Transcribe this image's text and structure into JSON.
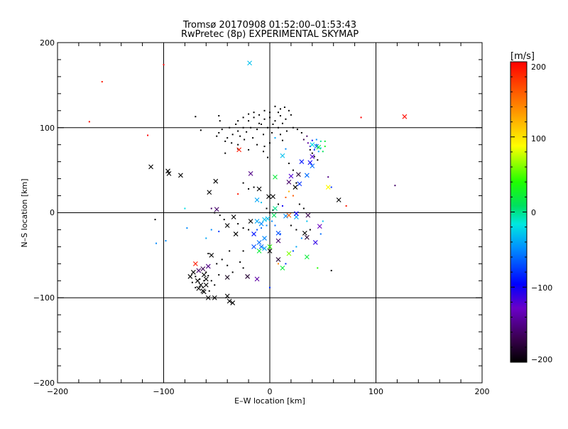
{
  "chart_data": {
    "type": "scatter",
    "title": "Tromsø 20170908 01:52:00–01:53:43",
    "subtitle": "RwPretec (8p) EXPERIMENTAL SKYMAP",
    "xlabel": "E–W location [km]",
    "ylabel": "N–S location [km]",
    "xlim": [
      -200,
      200
    ],
    "ylim": [
      -200,
      200
    ],
    "xticks": [
      "−200",
      "−100",
      "0",
      "100",
      "200"
    ],
    "yticks": [
      "200",
      "100",
      "0",
      "−100",
      "−200"
    ],
    "grid_lines": {
      "x": [
        -100,
        0,
        100
      ],
      "y": [
        100,
        0,
        -100
      ]
    },
    "colorbar": {
      "label": "[m/s]",
      "range": [
        -200,
        200
      ],
      "ticks": [
        "200",
        "100",
        "0",
        "−100",
        "−200"
      ]
    },
    "cross_markers": [
      {
        "x": -19,
        "y": 176,
        "v": -30
      },
      {
        "x": 127,
        "y": 113,
        "v": 195
      },
      {
        "x": -112,
        "y": 54,
        "v": -200
      },
      {
        "x": -96,
        "y": 49,
        "v": -200
      },
      {
        "x": -95,
        "y": 46,
        "v": -200
      },
      {
        "x": -84,
        "y": 44,
        "v": -200
      },
      {
        "x": -51,
        "y": 37,
        "v": -200
      },
      {
        "x": -57,
        "y": 24,
        "v": -200
      },
      {
        "x": -29,
        "y": 74,
        "v": 190
      },
      {
        "x": -18,
        "y": 46,
        "v": -150
      },
      {
        "x": -10,
        "y": 28,
        "v": -200
      },
      {
        "x": -1,
        "y": 19,
        "v": -200
      },
      {
        "x": 3,
        "y": 19,
        "v": -200
      },
      {
        "x": 5,
        "y": 42,
        "v": 20
      },
      {
        "x": 12,
        "y": 67,
        "v": -30
      },
      {
        "x": 18,
        "y": 36,
        "v": -160
      },
      {
        "x": 20,
        "y": 43,
        "v": -120
      },
      {
        "x": 24,
        "y": 30,
        "v": -200
      },
      {
        "x": 27,
        "y": 45,
        "v": -180
      },
      {
        "x": 30,
        "y": 60,
        "v": -90
      },
      {
        "x": 38,
        "y": 59,
        "v": -100
      },
      {
        "x": 40,
        "y": 66,
        "v": -120
      },
      {
        "x": 44,
        "y": 78,
        "v": -60
      },
      {
        "x": 46,
        "y": 77,
        "v": 20
      },
      {
        "x": 40,
        "y": 80,
        "v": -20
      },
      {
        "x": 40,
        "y": 55,
        "v": -60
      },
      {
        "x": 35,
        "y": 44,
        "v": -60
      },
      {
        "x": 28,
        "y": 34,
        "v": -80
      },
      {
        "x": 55,
        "y": 30,
        "v": 90
      },
      {
        "x": 65,
        "y": 15,
        "v": -200
      },
      {
        "x": -50,
        "y": 4,
        "v": -160
      },
      {
        "x": -34,
        "y": -5,
        "v": -200
      },
      {
        "x": -40,
        "y": -15,
        "v": -200
      },
      {
        "x": -32,
        "y": -25,
        "v": -200
      },
      {
        "x": -18,
        "y": -10,
        "v": -200
      },
      {
        "x": -12,
        "y": 15,
        "v": -40
      },
      {
        "x": -12,
        "y": -10,
        "v": -40
      },
      {
        "x": -8,
        "y": -13,
        "v": -50
      },
      {
        "x": -5,
        "y": -8,
        "v": -30
      },
      {
        "x": -2,
        "y": -7,
        "v": -30
      },
      {
        "x": 4,
        "y": -3,
        "v": 10
      },
      {
        "x": 5,
        "y": 5,
        "v": 0
      },
      {
        "x": 8,
        "y": -24,
        "v": -70
      },
      {
        "x": 15,
        "y": -4,
        "v": -50
      },
      {
        "x": 18,
        "y": -3,
        "v": 160
      },
      {
        "x": 25,
        "y": -5,
        "v": -40
      },
      {
        "x": 25,
        "y": -1,
        "v": -100
      },
      {
        "x": 33,
        "y": -24,
        "v": -200
      },
      {
        "x": 35,
        "y": -29,
        "v": -180
      },
      {
        "x": 36,
        "y": -3,
        "v": -170
      },
      {
        "x": 47,
        "y": -16,
        "v": -130
      },
      {
        "x": 43,
        "y": -35,
        "v": -110
      },
      {
        "x": 35,
        "y": -52,
        "v": 20
      },
      {
        "x": 18,
        "y": -48,
        "v": 60
      },
      {
        "x": 12,
        "y": -65,
        "v": 20
      },
      {
        "x": 8,
        "y": -55,
        "v": -180
      },
      {
        "x": 8,
        "y": -33,
        "v": -160
      },
      {
        "x": 0,
        "y": -45,
        "v": -200
      },
      {
        "x": 0,
        "y": -40,
        "v": 40
      },
      {
        "x": -5,
        "y": -42,
        "v": -40
      },
      {
        "x": -8,
        "y": -40,
        "v": -60
      },
      {
        "x": -10,
        "y": -45,
        "v": 20
      },
      {
        "x": -15,
        "y": -40,
        "v": -70
      },
      {
        "x": -5,
        "y": -30,
        "v": -50
      },
      {
        "x": -10,
        "y": -35,
        "v": -60
      },
      {
        "x": -15,
        "y": -25,
        "v": -90
      },
      {
        "x": -12,
        "y": -78,
        "v": -140
      },
      {
        "x": -21,
        "y": -75,
        "v": -180
      },
      {
        "x": -40,
        "y": -76,
        "v": -190
      },
      {
        "x": -58,
        "y": -63,
        "v": -150
      },
      {
        "x": -55,
        "y": -50,
        "v": -200
      },
      {
        "x": -63,
        "y": -66,
        "v": -170
      },
      {
        "x": -67,
        "y": -68,
        "v": -160
      },
      {
        "x": -70,
        "y": -60,
        "v": 190
      },
      {
        "x": -62,
        "y": -73,
        "v": -200
      },
      {
        "x": -68,
        "y": -80,
        "v": -200
      },
      {
        "x": -72,
        "y": -70,
        "v": -200
      },
      {
        "x": -75,
        "y": -75,
        "v": -200
      },
      {
        "x": -65,
        "y": -85,
        "v": -200
      },
      {
        "x": -60,
        "y": -78,
        "v": -200
      },
      {
        "x": -67,
        "y": -89,
        "v": -200
      },
      {
        "x": -62,
        "y": -93,
        "v": -200
      },
      {
        "x": -58,
        "y": -100,
        "v": -200
      },
      {
        "x": -52,
        "y": -100,
        "v": -200
      },
      {
        "x": -40,
        "y": -98,
        "v": -200
      },
      {
        "x": -35,
        "y": -106,
        "v": -200
      },
      {
        "x": -38,
        "y": -104,
        "v": -200
      },
      {
        "x": -63,
        "y": -92,
        "v": -200
      },
      {
        "x": -60,
        "y": -85,
        "v": -200
      }
    ],
    "point_markers": [
      {
        "x": -158,
        "y": 154,
        "v": 190
      },
      {
        "x": -170,
        "y": 107,
        "v": 195
      },
      {
        "x": -100,
        "y": 174,
        "v": 200
      },
      {
        "x": -115,
        "y": 91,
        "v": 200
      },
      {
        "x": 86,
        "y": 112,
        "v": 200
      },
      {
        "x": 118,
        "y": 32,
        "v": -160
      },
      {
        "x": -108,
        "y": -8,
        "v": -200
      },
      {
        "x": -80,
        "y": 5,
        "v": -20
      },
      {
        "x": -78,
        "y": -18,
        "v": -50
      },
      {
        "x": -98,
        "y": -33,
        "v": -50
      },
      {
        "x": -107,
        "y": -36,
        "v": -50
      },
      {
        "x": -58,
        "y": -48,
        "v": -200
      },
      {
        "x": -55,
        "y": 5,
        "v": -160
      },
      {
        "x": -52,
        "y": 0,
        "v": -200
      },
      {
        "x": -47,
        "y": -3,
        "v": -200
      },
      {
        "x": -43,
        "y": -8,
        "v": -200
      },
      {
        "x": -30,
        "y": -13,
        "v": -200
      },
      {
        "x": -25,
        "y": -18,
        "v": -200
      },
      {
        "x": -20,
        "y": -20,
        "v": -200
      },
      {
        "x": -48,
        "y": -22,
        "v": -80
      },
      {
        "x": -55,
        "y": -20,
        "v": -50
      },
      {
        "x": -60,
        "y": -30,
        "v": -40
      },
      {
        "x": -38,
        "y": -45,
        "v": -200
      },
      {
        "x": -25,
        "y": -45,
        "v": -200
      },
      {
        "x": -45,
        "y": -55,
        "v": -200
      },
      {
        "x": -50,
        "y": -60,
        "v": -200
      },
      {
        "x": -40,
        "y": -62,
        "v": -200
      },
      {
        "x": -35,
        "y": -70,
        "v": -200
      },
      {
        "x": -25,
        "y": -65,
        "v": -200
      },
      {
        "x": -28,
        "y": -58,
        "v": -200
      },
      {
        "x": -70,
        "y": -75,
        "v": -200
      },
      {
        "x": -73,
        "y": -82,
        "v": -200
      },
      {
        "x": -66,
        "y": -78,
        "v": -200
      },
      {
        "x": -60,
        "y": -70,
        "v": -200
      },
      {
        "x": -55,
        "y": -80,
        "v": -200
      },
      {
        "x": -63,
        "y": -88,
        "v": -200
      },
      {
        "x": -57,
        "y": -92,
        "v": -200
      },
      {
        "x": -52,
        "y": -85,
        "v": -200
      },
      {
        "x": -70,
        "y": -88,
        "v": -200
      },
      {
        "x": -62,
        "y": -80,
        "v": -200
      },
      {
        "x": -58,
        "y": -74,
        "v": -200
      },
      {
        "x": -48,
        "y": -73,
        "v": -200
      },
      {
        "x": -10,
        "y": 105,
        "v": -200
      },
      {
        "x": -5,
        "y": 110,
        "v": -200
      },
      {
        "x": 0,
        "y": 112,
        "v": -200
      },
      {
        "x": 5,
        "y": 108,
        "v": -200
      },
      {
        "x": 10,
        "y": 114,
        "v": -200
      },
      {
        "x": 15,
        "y": 110,
        "v": -200
      },
      {
        "x": -15,
        "y": 112,
        "v": -200
      },
      {
        "x": -20,
        "y": 108,
        "v": -200
      },
      {
        "x": -25,
        "y": 100,
        "v": -200
      },
      {
        "x": -30,
        "y": 96,
        "v": -200
      },
      {
        "x": -35,
        "y": 92,
        "v": -200
      },
      {
        "x": -40,
        "y": 88,
        "v": -200
      },
      {
        "x": -28,
        "y": 90,
        "v": -200
      },
      {
        "x": -22,
        "y": 95,
        "v": -200
      },
      {
        "x": -18,
        "y": 100,
        "v": -200
      },
      {
        "x": -12,
        "y": 98,
        "v": -200
      },
      {
        "x": -8,
        "y": 104,
        "v": -200
      },
      {
        "x": -2,
        "y": 100,
        "v": -200
      },
      {
        "x": 3,
        "y": 104,
        "v": -200
      },
      {
        "x": 8,
        "y": 100,
        "v": -200
      },
      {
        "x": 12,
        "y": 105,
        "v": -200
      },
      {
        "x": 20,
        "y": 115,
        "v": -200
      },
      {
        "x": 18,
        "y": 120,
        "v": -200
      },
      {
        "x": 10,
        "y": 122,
        "v": -200
      },
      {
        "x": 5,
        "y": 125,
        "v": -200
      },
      {
        "x": 0,
        "y": 118,
        "v": -200
      },
      {
        "x": -5,
        "y": 120,
        "v": -200
      },
      {
        "x": -10,
        "y": 115,
        "v": -200
      },
      {
        "x": -15,
        "y": 118,
        "v": -200
      },
      {
        "x": -20,
        "y": 116,
        "v": -200
      },
      {
        "x": -25,
        "y": 112,
        "v": -200
      },
      {
        "x": -30,
        "y": 108,
        "v": -200
      },
      {
        "x": -32,
        "y": 104,
        "v": -200
      },
      {
        "x": -38,
        "y": 100,
        "v": -200
      },
      {
        "x": -45,
        "y": 98,
        "v": -200
      },
      {
        "x": -48,
        "y": 94,
        "v": -200
      },
      {
        "x": -50,
        "y": 90,
        "v": -200
      },
      {
        "x": -42,
        "y": 84,
        "v": -200
      },
      {
        "x": -36,
        "y": 82,
        "v": -200
      },
      {
        "x": -30,
        "y": 80,
        "v": -200
      },
      {
        "x": -24,
        "y": 86,
        "v": -200
      },
      {
        "x": -16,
        "y": 88,
        "v": -200
      },
      {
        "x": -6,
        "y": 92,
        "v": -200
      },
      {
        "x": 2,
        "y": 94,
        "v": -200
      },
      {
        "x": 10,
        "y": 92,
        "v": -200
      },
      {
        "x": 16,
        "y": 96,
        "v": -200
      },
      {
        "x": 22,
        "y": 100,
        "v": -200
      },
      {
        "x": 26,
        "y": 98,
        "v": -200
      },
      {
        "x": 8,
        "y": 118,
        "v": -200
      },
      {
        "x": 14,
        "y": 124,
        "v": -200
      },
      {
        "x": -48,
        "y": 114,
        "v": -200
      },
      {
        "x": -47,
        "y": 108,
        "v": -200
      },
      {
        "x": -65,
        "y": 97,
        "v": -200
      },
      {
        "x": -70,
        "y": 113,
        "v": -200
      },
      {
        "x": -30,
        "y": 75,
        "v": -200
      },
      {
        "x": -42,
        "y": 70,
        "v": -200
      },
      {
        "x": -20,
        "y": 74,
        "v": -200
      },
      {
        "x": -12,
        "y": 80,
        "v": -200
      },
      {
        "x": -6,
        "y": 72,
        "v": -200
      },
      {
        "x": -2,
        "y": 65,
        "v": -200
      },
      {
        "x": 30,
        "y": 94,
        "v": -200
      },
      {
        "x": 35,
        "y": 90,
        "v": -160
      },
      {
        "x": 40,
        "y": 85,
        "v": -100
      },
      {
        "x": 44,
        "y": 80,
        "v": -60
      },
      {
        "x": 48,
        "y": 76,
        "v": -20
      },
      {
        "x": 50,
        "y": 72,
        "v": 10
      },
      {
        "x": 52,
        "y": 78,
        "v": 30
      },
      {
        "x": 46,
        "y": 72,
        "v": -40
      },
      {
        "x": 42,
        "y": 74,
        "v": -80
      },
      {
        "x": 38,
        "y": 78,
        "v": -120
      },
      {
        "x": 36,
        "y": 82,
        "v": -140
      },
      {
        "x": 32,
        "y": 86,
        "v": -170
      },
      {
        "x": 44,
        "y": 86,
        "v": -50
      },
      {
        "x": 48,
        "y": 84,
        "v": 0
      },
      {
        "x": 52,
        "y": 84,
        "v": 20
      },
      {
        "x": 40,
        "y": 70,
        "v": -200
      },
      {
        "x": 42,
        "y": 66,
        "v": -200
      },
      {
        "x": 45,
        "y": 62,
        "v": -200
      },
      {
        "x": 38,
        "y": 74,
        "v": -200
      },
      {
        "x": 55,
        "y": 42,
        "v": -150
      },
      {
        "x": 58,
        "y": 30,
        "v": -80
      },
      {
        "x": 72,
        "y": 8,
        "v": 190
      },
      {
        "x": 50,
        "y": -10,
        "v": -30
      },
      {
        "x": 48,
        "y": -25,
        "v": -60
      },
      {
        "x": 45,
        "y": -65,
        "v": 40
      },
      {
        "x": 58,
        "y": -68,
        "v": -200
      },
      {
        "x": 30,
        "y": -30,
        "v": -50
      },
      {
        "x": 25,
        "y": -40,
        "v": -40
      },
      {
        "x": 22,
        "y": -45,
        "v": -70
      },
      {
        "x": 15,
        "y": -60,
        "v": -80
      },
      {
        "x": 10,
        "y": -25,
        "v": -70
      },
      {
        "x": 5,
        "y": -15,
        "v": -60
      },
      {
        "x": 2,
        "y": -10,
        "v": -50
      },
      {
        "x": -3,
        "y": -15,
        "v": -50
      },
      {
        "x": -8,
        "y": -18,
        "v": -60
      },
      {
        "x": -12,
        "y": -20,
        "v": -70
      },
      {
        "x": 0,
        "y": -88,
        "v": -80
      },
      {
        "x": 8,
        "y": -60,
        "v": 140
      },
      {
        "x": 15,
        "y": 18,
        "v": 160
      },
      {
        "x": 22,
        "y": 20,
        "v": 160
      },
      {
        "x": 18,
        "y": 25,
        "v": 120
      },
      {
        "x": 25,
        "y": 35,
        "v": -200
      },
      {
        "x": 22,
        "y": 50,
        "v": -200
      },
      {
        "x": 18,
        "y": 58,
        "v": -200
      },
      {
        "x": 15,
        "y": 75,
        "v": -50
      },
      {
        "x": 12,
        "y": 85,
        "v": -200
      },
      {
        "x": 5,
        "y": 88,
        "v": -40
      },
      {
        "x": 0,
        "y": 82,
        "v": -200
      },
      {
        "x": -5,
        "y": 78,
        "v": -200
      },
      {
        "x": 12,
        "y": 8,
        "v": -100
      },
      {
        "x": 8,
        "y": 10,
        "v": -200
      },
      {
        "x": 3,
        "y": 3,
        "v": -200
      },
      {
        "x": 0,
        "y": 0,
        "v": -200
      },
      {
        "x": -3,
        "y": 5,
        "v": -200
      },
      {
        "x": -8,
        "y": 12,
        "v": -30
      },
      {
        "x": -15,
        "y": 30,
        "v": -200
      },
      {
        "x": -30,
        "y": 22,
        "v": 190
      },
      {
        "x": -25,
        "y": 35,
        "v": -200
      },
      {
        "x": -20,
        "y": 28,
        "v": -200
      },
      {
        "x": 28,
        "y": 10,
        "v": -200
      },
      {
        "x": 32,
        "y": 5,
        "v": -200
      },
      {
        "x": 35,
        "y": -10,
        "v": -30
      },
      {
        "x": 38,
        "y": -20,
        "v": -200
      },
      {
        "x": 20,
        "y": -15,
        "v": -200
      },
      {
        "x": 25,
        "y": -20,
        "v": -200
      }
    ],
    "notes": "Cross and point markers colored by velocity (m/s) on a rainbow colorbar from −200 (black) to 200 (red)."
  }
}
